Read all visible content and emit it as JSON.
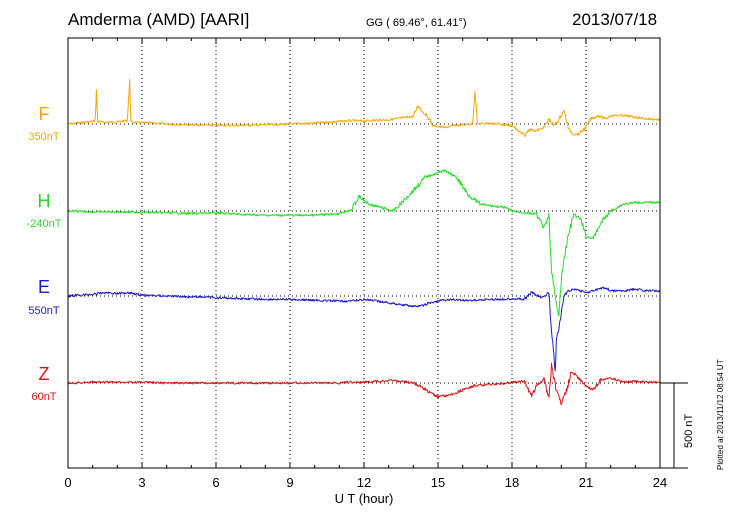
{
  "header": {
    "station": "Amderma (AMD)  [AARI]",
    "coords": "GG ( 69.46°,  61.41°)",
    "date": "2013/07/18"
  },
  "footer_note": "Plotted at 2013/11/12 08:54 UT",
  "scale_label": "500 nT",
  "chart_data": {
    "type": "line",
    "xlabel": "U T (hour)",
    "xlim": [
      0,
      24
    ],
    "xticks": [
      "0",
      "3",
      "6",
      "9",
      "12",
      "15",
      "18",
      "21",
      "24"
    ],
    "grid": true,
    "series": [
      {
        "name": "F",
        "baseline_label": "350nT",
        "color": "#f5a800",
        "x": [
          0,
          0.5,
          1.0,
          1.1,
          1.15,
          1.2,
          1.5,
          2.0,
          2.4,
          2.5,
          2.55,
          2.6,
          3.0,
          3.5,
          4.0,
          5.0,
          6.0,
          7.0,
          8.0,
          9.0,
          10.0,
          10.5,
          11.0,
          11.5,
          12.0,
          12.5,
          13.0,
          13.5,
          14.0,
          14.2,
          14.4,
          14.6,
          14.8,
          15.0,
          15.3,
          15.6,
          16.0,
          16.4,
          16.5,
          16.6,
          17.0,
          17.5,
          18.0,
          18.5,
          18.7,
          19.0,
          19.3,
          19.5,
          19.7,
          19.9,
          20.1,
          20.3,
          20.5,
          20.7,
          21.0,
          21.2,
          21.5,
          21.8,
          22.0,
          22.5,
          23.0,
          23.5,
          24.0
        ],
        "y": [
          0,
          8,
          15,
          20,
          200,
          15,
          10,
          12,
          20,
          250,
          20,
          10,
          8,
          5,
          0,
          -5,
          -8,
          -8,
          -5,
          0,
          5,
          10,
          15,
          20,
          18,
          22,
          25,
          35,
          45,
          110,
          70,
          40,
          -10,
          -15,
          -20,
          -10,
          -5,
          0,
          200,
          0,
          5,
          0,
          -10,
          -70,
          -30,
          -40,
          -20,
          30,
          -10,
          25,
          80,
          -30,
          -60,
          -60,
          -20,
          30,
          50,
          30,
          50,
          50,
          40,
          30,
          25
        ]
      },
      {
        "name": "H",
        "baseline_label": "-240nT",
        "color": "#22dd22",
        "x": [
          0,
          1,
          2,
          3,
          4,
          5,
          6,
          7,
          8,
          9,
          10,
          10.5,
          11.0,
          11.5,
          11.8,
          12.2,
          12.7,
          13.2,
          13.6,
          14.0,
          14.5,
          14.9,
          15.2,
          15.5,
          15.8,
          16.2,
          16.7,
          17.2,
          17.7,
          18.0,
          18.5,
          19.0,
          19.3,
          19.5,
          19.6,
          19.7,
          19.8,
          19.9,
          20.0,
          20.2,
          20.5,
          20.8,
          21.0,
          21.3,
          21.5,
          21.7,
          22.0,
          22.5,
          23.0,
          23.5,
          24.0
        ],
        "y": [
          0,
          -5,
          -5,
          -8,
          -10,
          -15,
          -10,
          -20,
          -25,
          -25,
          -25,
          -20,
          -15,
          10,
          85,
          40,
          20,
          0,
          60,
          120,
          200,
          220,
          240,
          220,
          190,
          100,
          40,
          30,
          20,
          0,
          -10,
          -20,
          -100,
          -30,
          -350,
          -450,
          -550,
          -620,
          -400,
          -200,
          -20,
          -50,
          -150,
          -160,
          -100,
          -50,
          0,
          40,
          50,
          50,
          50
        ]
      },
      {
        "name": "E",
        "baseline_label": "550nT",
        "color": "#1a1acc",
        "x": [
          0,
          1,
          1.5,
          2.0,
          2.5,
          3.0,
          4.0,
          5.0,
          5.5,
          6.0,
          7.0,
          8.0,
          9.0,
          10.0,
          11.0,
          11.5,
          12.0,
          12.5,
          13.0,
          13.5,
          14.0,
          14.3,
          14.6,
          15.0,
          15.5,
          16.0,
          16.5,
          17.0,
          17.5,
          18.0,
          18.5,
          18.8,
          19.2,
          19.5,
          19.6,
          19.7,
          19.75,
          19.8,
          19.9,
          20.1,
          20.3,
          20.6,
          21.0,
          21.3,
          21.5,
          21.8,
          22.0,
          22.5,
          23.0,
          23.5,
          24.0
        ],
        "y": [
          0,
          10,
          20,
          15,
          20,
          5,
          0,
          -5,
          -5,
          -10,
          -15,
          -20,
          -20,
          -25,
          -30,
          -30,
          -20,
          -30,
          -40,
          -50,
          -60,
          -60,
          -45,
          -30,
          -20,
          -25,
          -25,
          -20,
          -20,
          -15,
          -20,
          20,
          -10,
          20,
          -200,
          -350,
          -450,
          -250,
          -200,
          0,
          30,
          40,
          20,
          30,
          40,
          50,
          30,
          30,
          40,
          30,
          30
        ]
      },
      {
        "name": "Z",
        "baseline_label": "60nT",
        "color": "#dd1111",
        "x": [
          0,
          1,
          2,
          3,
          4,
          5,
          6,
          7,
          8,
          9,
          10,
          11,
          11.5,
          12,
          12.5,
          13,
          13.5,
          14,
          14.3,
          14.6,
          15,
          15.5,
          16,
          16.5,
          17,
          17.5,
          18,
          18.5,
          18.8,
          19,
          19.3,
          19.5,
          19.6,
          19.8,
          20.0,
          20.2,
          20.4,
          20.6,
          20.8,
          21.0,
          21.3,
          21.6,
          22.0,
          22.5,
          23.0,
          23.5,
          24.0
        ],
        "y": [
          0,
          5,
          5,
          5,
          0,
          0,
          0,
          0,
          0,
          0,
          0,
          0,
          5,
          5,
          10,
          15,
          10,
          0,
          -20,
          -50,
          -80,
          -70,
          -40,
          -15,
          -10,
          -5,
          5,
          10,
          -80,
          -10,
          20,
          -100,
          100,
          -50,
          -120,
          -50,
          60,
          50,
          10,
          -20,
          -40,
          20,
          30,
          5,
          10,
          5,
          5
        ]
      }
    ]
  }
}
